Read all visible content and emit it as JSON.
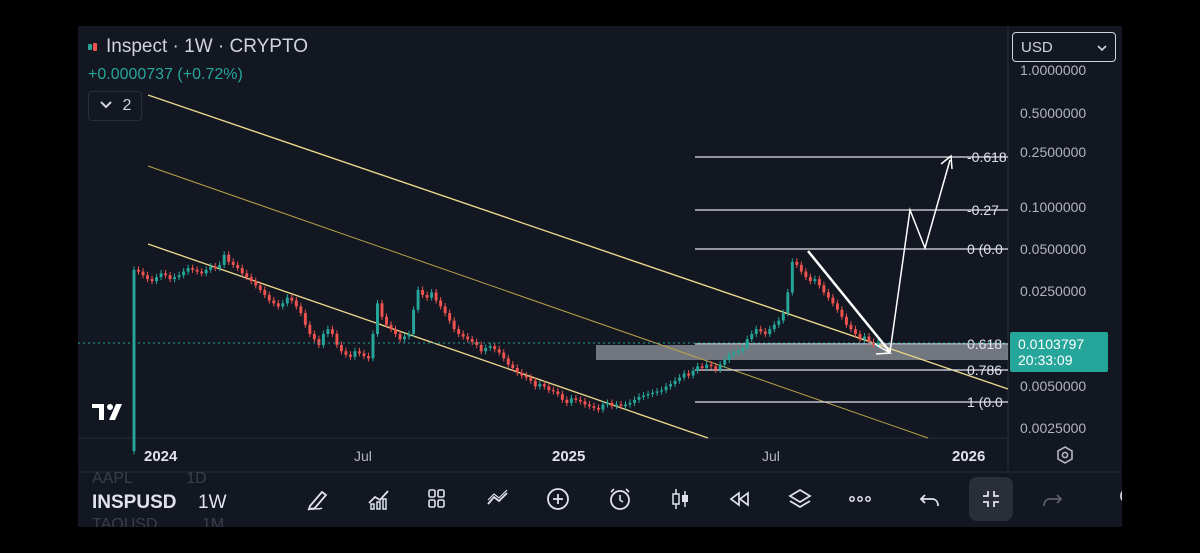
{
  "header": {
    "title": "Inspect · 1W · CRYPTO",
    "change": "+0.0000737 (+0.72%)",
    "collapse_count": "2",
    "currency": "USD"
  },
  "price_axis": {
    "ticks": [
      "1.0000000",
      "0.5000000",
      "0.2500000",
      "0.1000000",
      "0.0500000",
      "0.0250000",
      "0.0050000",
      "0.0025000"
    ],
    "current_price": "0.0103797",
    "countdown": "20:33:09"
  },
  "time_axis": {
    "labels": [
      "2024",
      "Jul",
      "2025",
      "Jul",
      "2026"
    ]
  },
  "fib_levels": [
    "-0.618",
    "-0.27",
    "0 (0.0",
    "0.618",
    "0.786",
    "1 (0.0"
  ],
  "toolbar": {
    "symbol": "INSPUSD",
    "interval": "1W",
    "ghost_symbol_top": "AAPL",
    "ghost_interval_top": "1D",
    "ghost_symbol_bottom": "TAOUSD",
    "ghost_interval_bottom": "1M"
  },
  "colors": {
    "background": "#131722",
    "up": "#26a69a",
    "down": "#ef5350",
    "channel": "#e8d68a"
  },
  "chart_data": {
    "type": "candlestick",
    "interval": "1W",
    "scale": "log",
    "yticks": [
      1.0,
      0.5,
      0.25,
      0.1,
      0.05,
      0.025,
      0.005,
      0.0025
    ],
    "current_price": 0.0103797,
    "fib_levels": [
      {
        "label": "-0.618",
        "price": 0.245
      },
      {
        "label": "-0.27",
        "price": 0.1
      },
      {
        "label": "0",
        "price": 0.05
      },
      {
        "label": "0.618",
        "price": 0.0105
      },
      {
        "label": "0.786",
        "price": 0.0075
      },
      {
        "label": "1",
        "price": 0.0045
      }
    ],
    "series": [
      {
        "closes": [
          0.035,
          0.034,
          0.032,
          0.03,
          0.029,
          0.031,
          0.033,
          0.032,
          0.03,
          0.031,
          0.032,
          0.034,
          0.036,
          0.035,
          0.034,
          0.033,
          0.035,
          0.037,
          0.036,
          0.038,
          0.045,
          0.04,
          0.038,
          0.036,
          0.033,
          0.031,
          0.029,
          0.027,
          0.025,
          0.023,
          0.021,
          0.02,
          0.019,
          0.02,
          0.022,
          0.021,
          0.019,
          0.017,
          0.014,
          0.012,
          0.011,
          0.01,
          0.012,
          0.013,
          0.012,
          0.01,
          0.009,
          0.0085,
          0.0082,
          0.009,
          0.0087,
          0.0083,
          0.008,
          0.012,
          0.02,
          0.016,
          0.014,
          0.013,
          0.012,
          0.011,
          0.0115,
          0.012,
          0.018,
          0.025,
          0.023,
          0.022,
          0.024,
          0.021,
          0.019,
          0.017,
          0.015,
          0.013,
          0.012,
          0.0115,
          0.011,
          0.0105,
          0.01,
          0.009,
          0.0095,
          0.0098,
          0.0093,
          0.0088,
          0.008,
          0.0072,
          0.0068,
          0.0063,
          0.006,
          0.0058,
          0.0055,
          0.005,
          0.0052,
          0.005,
          0.0047,
          0.0046,
          0.0044,
          0.004,
          0.0038,
          0.0041,
          0.004,
          0.0039,
          0.0037,
          0.0036,
          0.0035,
          0.0034,
          0.0037,
          0.0038,
          0.0036,
          0.0037,
          0.0036,
          0.0037,
          0.0038,
          0.004,
          0.0042,
          0.0043,
          0.0044,
          0.0045,
          0.0046,
          0.0047,
          0.005,
          0.0052,
          0.0055,
          0.0058,
          0.0062,
          0.006,
          0.0065,
          0.007,
          0.0068,
          0.0072,
          0.007,
          0.0066,
          0.0072,
          0.0078,
          0.0085,
          0.0088,
          0.009,
          0.0095,
          0.011,
          0.012,
          0.013,
          0.0125,
          0.012,
          0.013,
          0.014,
          0.015,
          0.017,
          0.024,
          0.04,
          0.038,
          0.034,
          0.031,
          0.029,
          0.03,
          0.027,
          0.024,
          0.022,
          0.02,
          0.018,
          0.016,
          0.014,
          0.013,
          0.012,
          0.011,
          0.0115,
          0.0105,
          0.01,
          0.0103797
        ]
      }
    ]
  }
}
